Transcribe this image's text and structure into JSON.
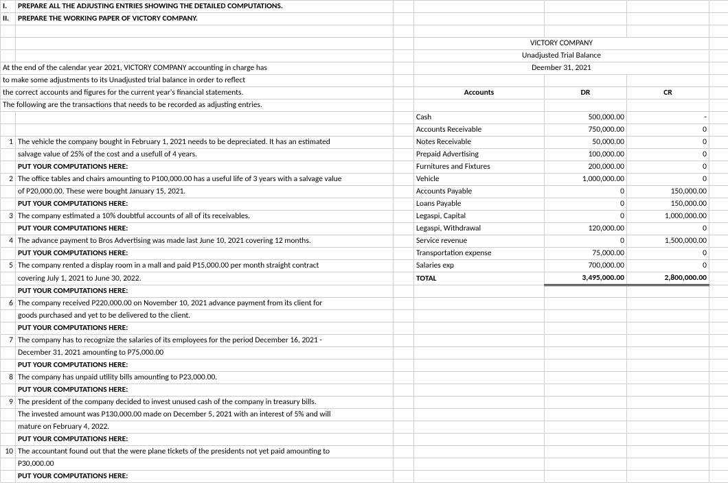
{
  "instructions": {
    "i": "I.",
    "i_text": "PREPARE ALL THE ADJUSTING ENTRIES SHOWING THE DETAILED COMPUTATIONS.",
    "ii": "II.",
    "ii_text": "PREPARE THE WORKING PAPER OF VICTORY COMPANY."
  },
  "header": {
    "company": "VICTORY COMPANY",
    "title": "Unadjusted Trial Balance",
    "date": "Deember 31, 2021"
  },
  "intro": {
    "l1": "At the end of the calendar year 2021,  VICTORY COMPANY accounting in charge has",
    "l2": "to make some adjustments to its Unadjusted trial balance in order to reflect",
    "l3": "the correct accounts and figures for the current year's financial statements.",
    "l4": "The following are the transactions that needs to be recorded as adjusting entries."
  },
  "cols": {
    "acct": "Accounts",
    "dr": "DR",
    "cr": "CR"
  },
  "tb": [
    {
      "acct": "Cash",
      "dr": "500,000.00",
      "cr": "-"
    },
    {
      "acct": "Accounts Receivable",
      "dr": "750,000.00",
      "cr": "0"
    },
    {
      "acct": "Notes Receivable",
      "dr": "50,000.00",
      "cr": "0"
    },
    {
      "acct": "Prepaid Advertising",
      "dr": "100,000.00",
      "cr": "0"
    },
    {
      "acct": "Furnitures and Fixtures",
      "dr": "200,000.00",
      "cr": "0"
    },
    {
      "acct": "Vehicle",
      "dr": "1,000,000.00",
      "cr": "0"
    },
    {
      "acct": "Accounts Payable",
      "dr": "0",
      "cr": "150,000.00"
    },
    {
      "acct": "Loans Payable",
      "dr": "0",
      "cr": "150,000.00"
    },
    {
      "acct": "Legaspi, Capital",
      "dr": "0",
      "cr": "1,000,000.00"
    },
    {
      "acct": "Legaspi, Withdrawal",
      "dr": "120,000.00",
      "cr": "0"
    },
    {
      "acct": "Service revenue",
      "dr": "0",
      "cr": "1,500,000.00"
    },
    {
      "acct": "Transportation expense",
      "dr": "75,000.00",
      "cr": "0"
    },
    {
      "acct": "Salaries exp",
      "dr": "700,000.00",
      "cr": "0"
    }
  ],
  "total": {
    "label": "TOTAL",
    "dr": "3,495,000.00",
    "cr": "2,800,000.00"
  },
  "pyc": "PUT YOUR  COMPUTATIONS HERE:",
  "items": {
    "n1": "1",
    "t1a": "The vehicle the company bought in February 1, 2021 needs to be depreciated. It has an estimated",
    "t1b": "salvage value of 25% of the cost and a usefull of 4 years.",
    "n2": "2",
    "t2a": "The office tables and chairs amounting to P100,000.00 has a useful life of 3 years with a salvage value",
    "t2b": "of P20,000.00. These were bought January 15, 2021.",
    "n3": "3",
    "t3": "The company estimated a 10% doubtful accounts of all of its receivables.",
    "n4": "4",
    "t4": "The advance payment to Bros Advertising  was made last June 10, 2021 covering 12 months.",
    "n5": "5",
    "t5a": "The company rented a display room in a mall and paid P15,000.00 per month straight contract",
    "t5b": "covering July 1, 2021 to June 30, 2022.",
    "n6": "6",
    "t6a": "The company received P220,000.00 on November 10, 2021 advance payment from its client for",
    "t6b": "goods purchased and yet to be delivered to the client.",
    "n7": "7",
    "t7a": "The company has to recognize the salaries of its employees for the period December 16, 2021 -",
    "t7b": "December 31, 2021 amounting to P75,000.00",
    "n8": "8",
    "t8": "The company has unpaid utility bills amounting to P23,000.00.",
    "n9": "9",
    "t9a": "The president of the company decided to invest unused cash of the company in treasury bills.",
    "t9b": "The invested amount was P130,000.00 made on December 5, 2021 with an interest of 5% and will",
    "t9c": "mature on February 4, 2022.",
    "n10": "10",
    "t10a": "The accountant found out that the were plane tickets of the presidents not yet paid amounting to",
    "t10b": "P30,000.00"
  }
}
